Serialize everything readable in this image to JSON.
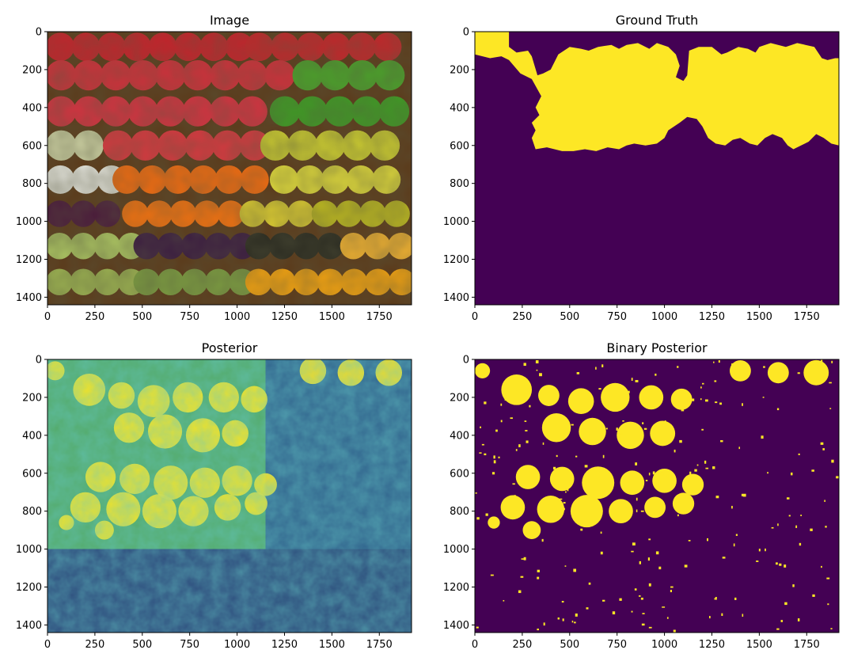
{
  "chart_data": [
    {
      "type": "image",
      "title": "Image",
      "xlim": [
        0,
        1920
      ],
      "ylim": [
        1440,
        0
      ],
      "xticks": [
        0,
        250,
        500,
        750,
        1000,
        1250,
        1500,
        1750
      ],
      "yticks": [
        0,
        200,
        400,
        600,
        800,
        1000,
        1200,
        1400
      ],
      "content": "photo of fruit stall"
    },
    {
      "type": "heatmap",
      "title": "Ground Truth",
      "xlim": [
        0,
        1920
      ],
      "ylim": [
        1440,
        0
      ],
      "xticks": [
        0,
        250,
        500,
        750,
        1000,
        1250,
        1500,
        1750
      ],
      "yticks": [
        0,
        200,
        400,
        600,
        800,
        1000,
        1200,
        1400
      ],
      "colormap": "viridis",
      "values_range": [
        0,
        1
      ]
    },
    {
      "type": "heatmap",
      "title": "Posterior",
      "xlim": [
        0,
        1920
      ],
      "ylim": [
        1440,
        0
      ],
      "xticks": [
        0,
        250,
        500,
        750,
        1000,
        1250,
        1500,
        1750
      ],
      "yticks": [
        0,
        200,
        400,
        600,
        800,
        1000,
        1200,
        1400
      ],
      "colormap": "viridis",
      "values_range": [
        0,
        1
      ]
    },
    {
      "type": "heatmap",
      "title": "Binary Posterior",
      "xlim": [
        0,
        1920
      ],
      "ylim": [
        1440,
        0
      ],
      "xticks": [
        0,
        250,
        500,
        750,
        1000,
        1250,
        1500,
        1750
      ],
      "yticks": [
        0,
        200,
        400,
        600,
        800,
        1000,
        1200,
        1400
      ],
      "colormap": "viridis",
      "values_range": [
        0,
        1
      ]
    }
  ],
  "colors": {
    "viridis_low": "#440154",
    "viridis_mid": "#21918c",
    "viridis_high": "#fde725"
  }
}
